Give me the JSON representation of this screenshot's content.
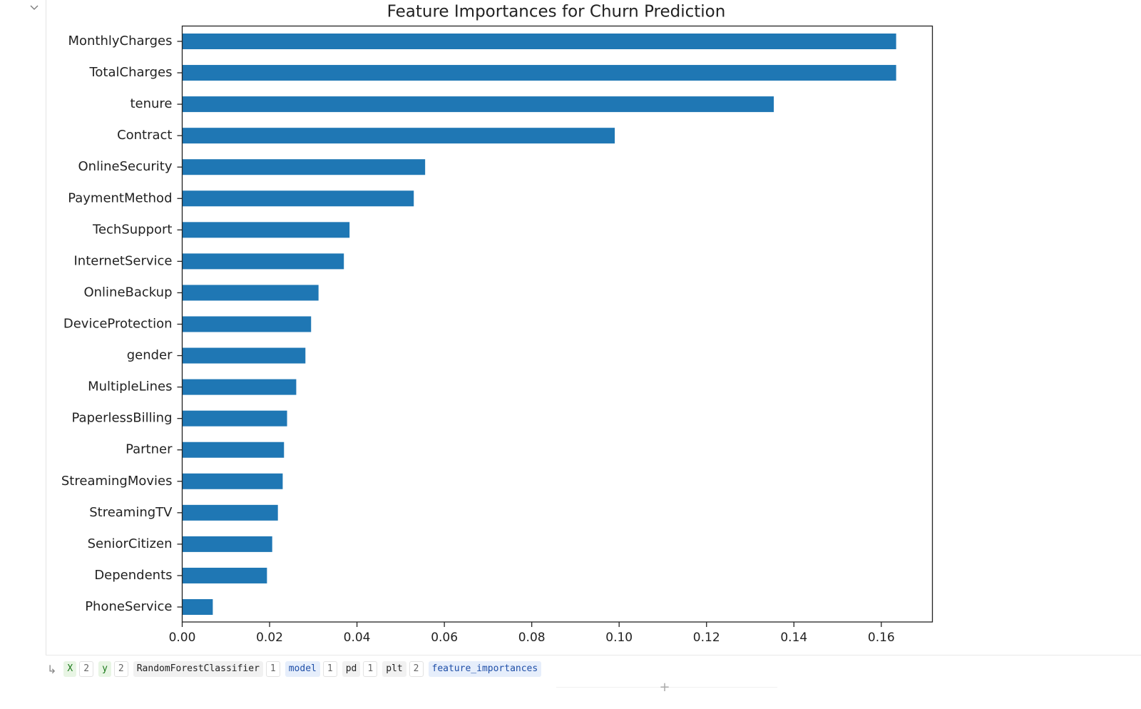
{
  "chart_data": {
    "type": "barh",
    "title": "Feature Importances for Churn Prediction",
    "categories": [
      "MonthlyCharges",
      "TotalCharges",
      "tenure",
      "Contract",
      "OnlineSecurity",
      "PaymentMethod",
      "TechSupport",
      "InternetService",
      "OnlineBackup",
      "DeviceProtection",
      "gender",
      "MultipleLines",
      "PaperlessBilling",
      "Partner",
      "StreamingMovies",
      "StreamingTV",
      "SeniorCitizen",
      "Dependents",
      "PhoneService"
    ],
    "values": [
      0.1634,
      0.1634,
      0.1354,
      0.099,
      0.0556,
      0.053,
      0.0383,
      0.037,
      0.0312,
      0.0295,
      0.0282,
      0.0261,
      0.024,
      0.0233,
      0.023,
      0.0219,
      0.0206,
      0.0194,
      0.007
    ],
    "color": "#1f77b4",
    "xlim": [
      0,
      0.1717
    ],
    "xticks": [
      {
        "value": 0,
        "label": "0.00"
      },
      0.02,
      0.04,
      0.06,
      0.08,
      {
        "value": 0.1,
        "label": "0.10"
      },
      0.12,
      0.14,
      0.16
    ]
  },
  "variables": [
    {
      "name": "X",
      "count": "2"
    },
    {
      "name": "y",
      "count": "2"
    },
    {
      "name": "RandomForestClassifier",
      "count": "1"
    },
    {
      "name": "model",
      "count": "1"
    },
    {
      "name": "pd",
      "count": "1"
    },
    {
      "name": "plt",
      "count": "2"
    },
    {
      "name": "feature_importances"
    }
  ]
}
